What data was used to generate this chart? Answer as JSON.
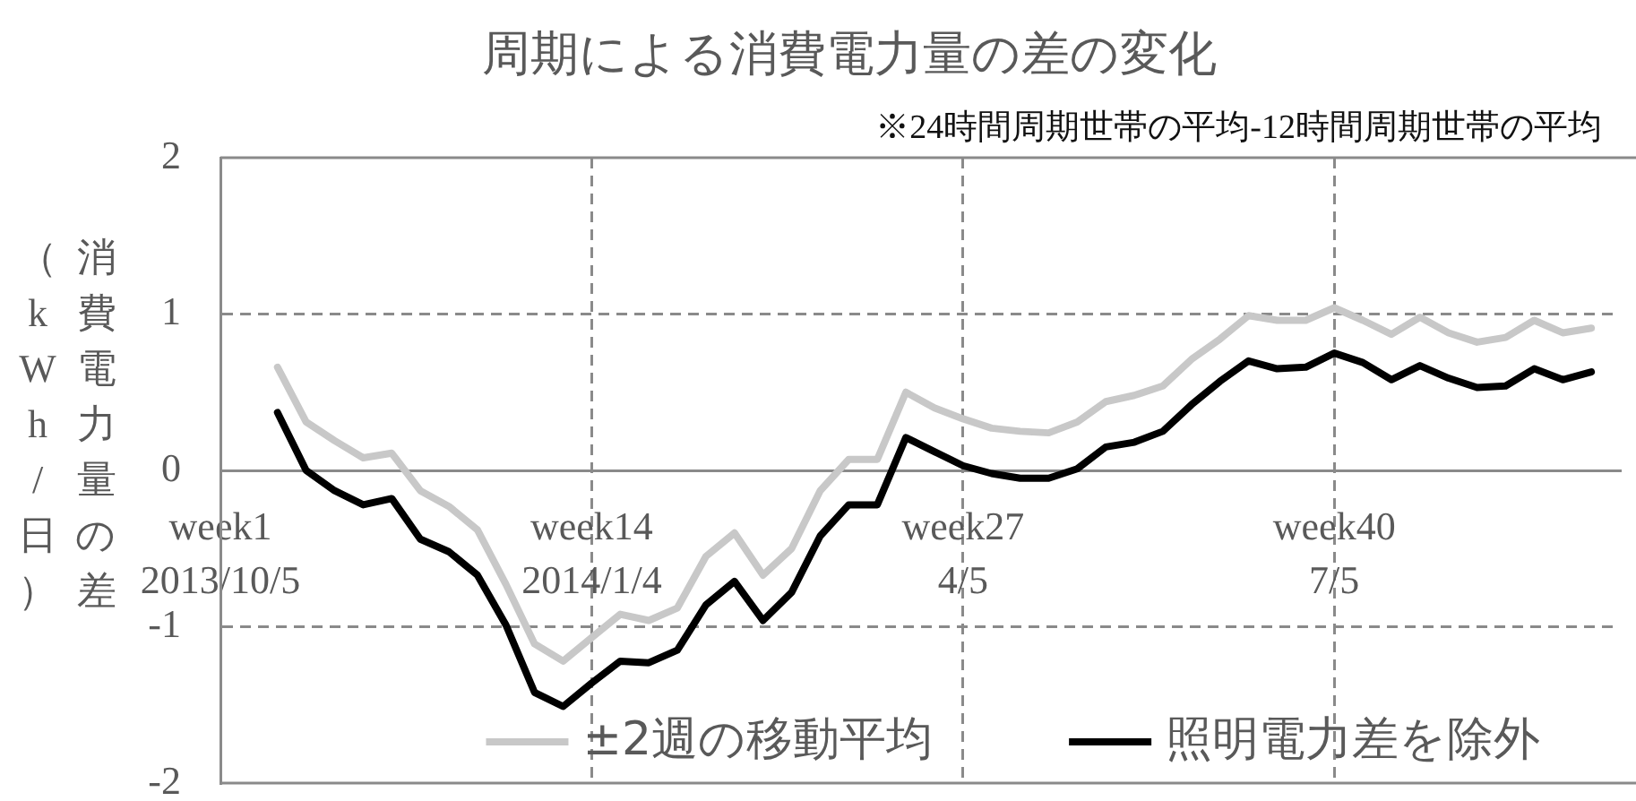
{
  "chart_data": {
    "type": "line",
    "title": "周期による消費電力量の差の変化",
    "ylabel": "消費電力量の差（kWh/日）",
    "annotations": [
      "※24時間周期世帯の平均-12時間周期世帯の平均"
    ],
    "categories": [
      "week1\n2013/10/5",
      null,
      null,
      null,
      null,
      null,
      null,
      null,
      null,
      null,
      null,
      null,
      null,
      "week14\n2014/1/4",
      null,
      null,
      null,
      null,
      null,
      null,
      null,
      null,
      null,
      null,
      null,
      null,
      "week27\n4/5",
      null,
      null,
      null,
      null,
      null,
      null,
      null,
      null,
      null,
      null,
      null,
      null,
      "week40\n7/5",
      null,
      null,
      null,
      null,
      null,
      null,
      null,
      null,
      null,
      null
    ],
    "series": [
      {
        "name": "±2週の移動平均",
        "color": "#c8c8c8",
        "values": [
          null,
          null,
          0.66,
          0.31,
          0.19,
          0.08,
          0.11,
          -0.13,
          -0.23,
          -0.38,
          -0.73,
          -1.11,
          -1.22,
          -1.07,
          -0.92,
          -0.96,
          -0.88,
          -0.55,
          -0.4,
          -0.67,
          -0.5,
          -0.13,
          0.07,
          0.07,
          0.5,
          0.4,
          0.33,
          0.27,
          0.25,
          0.24,
          0.31,
          0.44,
          0.48,
          0.54,
          0.71,
          0.84,
          0.99,
          0.96,
          0.96,
          1.04,
          0.96,
          0.87,
          0.98,
          0.88,
          0.82,
          0.85,
          0.96,
          0.88,
          0.91,
          null
        ]
      },
      {
        "name": "照明電力差を除外",
        "color": "#000000",
        "values": [
          null,
          null,
          0.37,
          0.0,
          -0.13,
          -0.22,
          -0.18,
          -0.44,
          -0.52,
          -0.67,
          -0.99,
          -1.42,
          -1.51,
          -1.36,
          -1.22,
          -1.23,
          -1.15,
          -0.86,
          -0.71,
          -0.96,
          -0.78,
          -0.42,
          -0.22,
          -0.22,
          0.21,
          0.12,
          0.03,
          -0.02,
          -0.05,
          -0.05,
          0.01,
          0.15,
          0.18,
          0.25,
          0.42,
          0.57,
          0.7,
          0.65,
          0.66,
          0.75,
          0.69,
          0.58,
          0.67,
          0.59,
          0.53,
          0.54,
          0.65,
          0.58,
          0.63,
          null
        ]
      }
    ],
    "ylim": [
      -2,
      2
    ],
    "yticks": [
      -2,
      -1,
      0,
      1,
      2
    ],
    "grid": true,
    "legend": "bottom",
    "marker": "none",
    "line_style": "solid"
  }
}
